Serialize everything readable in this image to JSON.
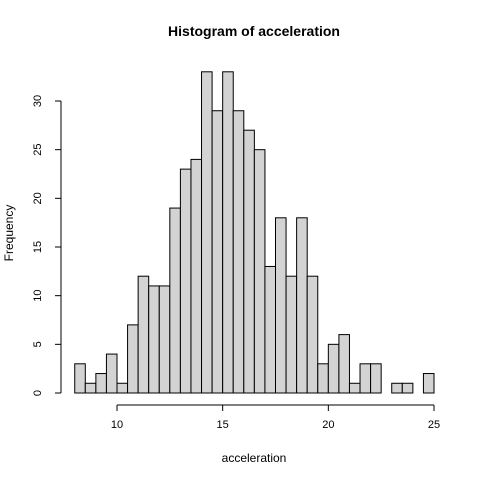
{
  "chart_data": {
    "type": "bar",
    "title": "Histogram of acceleration",
    "xlabel": "acceleration",
    "ylabel": "Frequency",
    "xlim": [
      8,
      25
    ],
    "ylim": [
      0,
      33
    ],
    "bin_width": 0.5,
    "bins_start": [
      8.0,
      8.5,
      9.0,
      9.5,
      10.0,
      10.5,
      11.0,
      11.5,
      12.0,
      12.5,
      13.0,
      13.5,
      14.0,
      14.5,
      15.0,
      15.5,
      16.0,
      16.5,
      17.0,
      17.5,
      18.0,
      18.5,
      19.0,
      19.5,
      20.0,
      20.5,
      21.0,
      21.5,
      22.0,
      22.5,
      23.0,
      23.5,
      24.0,
      24.5
    ],
    "values": [
      3,
      1,
      2,
      4,
      1,
      7,
      12,
      11,
      11,
      19,
      23,
      24,
      33,
      29,
      33,
      29,
      27,
      25,
      13,
      18,
      12,
      18,
      12,
      3,
      5,
      6,
      1,
      3,
      3,
      0,
      1,
      1,
      0,
      2
    ],
    "x_ticks": [
      10,
      15,
      20,
      25
    ],
    "y_ticks": [
      0,
      5,
      10,
      15,
      20,
      25,
      30
    ],
    "colors": {
      "bar_fill": "#d3d3d3",
      "bar_stroke": "#000000"
    },
    "grid": false
  }
}
